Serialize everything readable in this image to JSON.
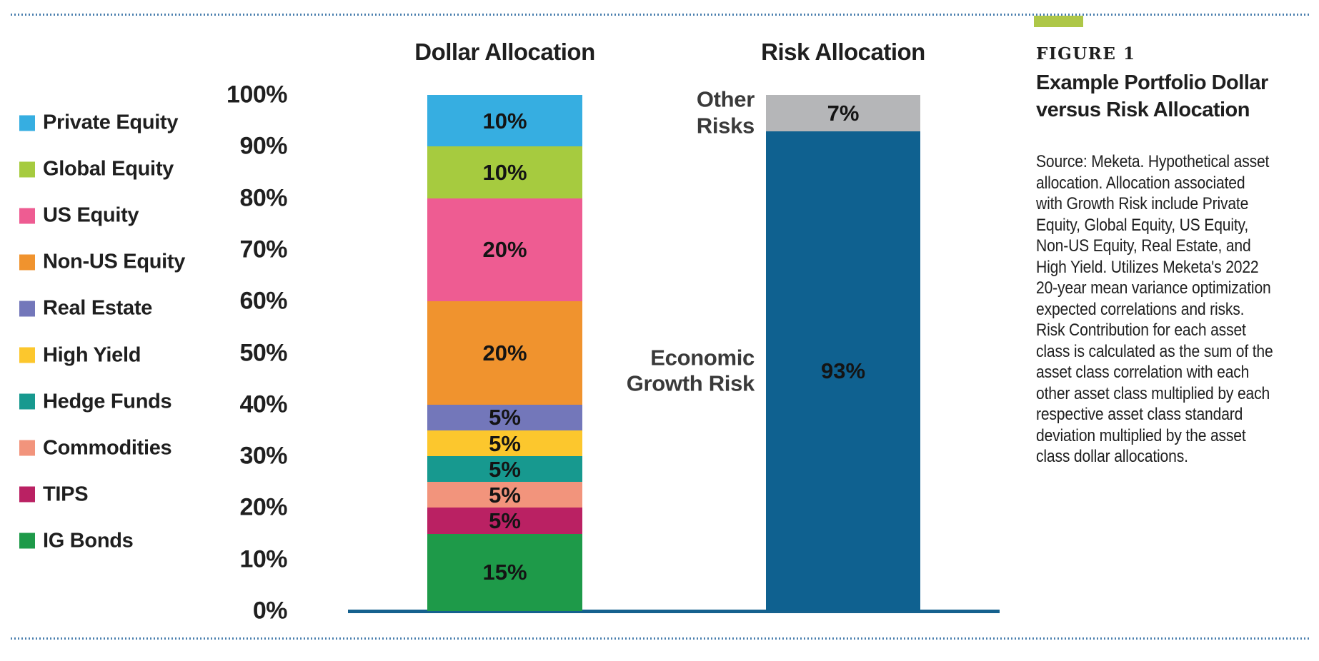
{
  "figure": {
    "label": "FIGURE 1",
    "title": "Example Portfolio Dollar\nversus Risk Allocation",
    "source": "Source: Meketa. Hypothetical asset\nallocation. Allocation associated\nwith Growth Risk include Private\nEquity, Global Equity, US Equity,\nNon-US Equity, Real Estate, and\nHigh Yield. Utilizes Meketa's 2022\n20-year mean variance optimization\nexpected correlations and risks.\nRisk Contribution for each asset\nclass is calculated as the sum of the\nasset class correlation with each\nother asset class multiplied by each\nrespective asset class standard\ndeviation multiplied by the asset\nclass dollar allocations.",
    "tag_color": "#AEC748"
  },
  "colors": {
    "baseline": "#15618E",
    "dotted_line": "#4A7FAE",
    "text": "#1F1F1F"
  },
  "chart_data": {
    "type": "bar",
    "stacked": true,
    "title": "",
    "xlabel": "",
    "ylabel": "",
    "ylim": [
      0,
      100
    ],
    "ytick_step": 10,
    "ytick_suffix": "%",
    "grid": false,
    "legend_position": "left",
    "legend": [
      {
        "label": "Private Equity",
        "color": "#36AEE1"
      },
      {
        "label": "Global Equity",
        "color": "#A6CB3F"
      },
      {
        "label": "US Equity",
        "color": "#EE5C92"
      },
      {
        "label": "Non-US Equity",
        "color": "#F0932E"
      },
      {
        "label": "Real Estate",
        "color": "#7377BA"
      },
      {
        "label": "High Yield",
        "color": "#FCC72D"
      },
      {
        "label": "Hedge Funds",
        "color": "#17998F"
      },
      {
        "label": "Commodities",
        "color": "#F2947C"
      },
      {
        "label": "TIPS",
        "color": "#BA2163"
      },
      {
        "label": "IG Bonds",
        "color": "#1E9A49"
      }
    ],
    "bars": [
      {
        "title": "Dollar Allocation",
        "segments_bottom_to_top": [
          {
            "name": "IG Bonds",
            "value": 15,
            "label": "15%",
            "color": "#1E9A49"
          },
          {
            "name": "TIPS",
            "value": 5,
            "label": "5%",
            "color": "#BA2163"
          },
          {
            "name": "Commodities",
            "value": 5,
            "label": "5%",
            "color": "#F2947C"
          },
          {
            "name": "Hedge Funds",
            "value": 5,
            "label": "5%",
            "color": "#17998F"
          },
          {
            "name": "High Yield",
            "value": 5,
            "label": "5%",
            "color": "#FCC72D"
          },
          {
            "name": "Real Estate",
            "value": 5,
            "label": "5%",
            "color": "#7377BA"
          },
          {
            "name": "Non-US Equity",
            "value": 20,
            "label": "20%",
            "color": "#F0932E"
          },
          {
            "name": "US Equity",
            "value": 20,
            "label": "20%",
            "color": "#EE5C92"
          },
          {
            "name": "Global Equity",
            "value": 10,
            "label": "10%",
            "color": "#A6CB3F"
          },
          {
            "name": "Private Equity",
            "value": 10,
            "label": "10%",
            "color": "#36AEE1"
          }
        ]
      },
      {
        "title": "Risk Allocation",
        "segments_bottom_to_top": [
          {
            "name": "Economic Growth Risk",
            "value": 93,
            "label": "93%",
            "color": "#0F6190",
            "side_label": "Economic\nGrowth Risk"
          },
          {
            "name": "Other Risks",
            "value": 7,
            "label": "7%",
            "color": "#B5B6B8",
            "side_label": "Other\nRisks"
          }
        ]
      }
    ]
  }
}
